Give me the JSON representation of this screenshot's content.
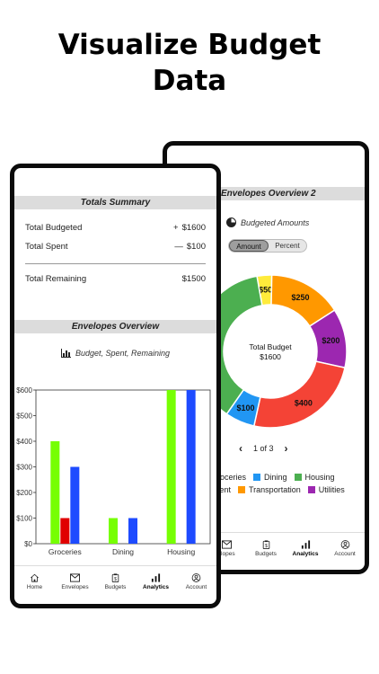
{
  "headline": {
    "line1": "Visualize Budget",
    "line2": "Data"
  },
  "back_phone": {
    "section_title": "Envelopes Overview 2",
    "subtitle": "Budgeted Amounts",
    "toggle": [
      "Amount",
      "Percent"
    ],
    "donut_center": {
      "line1": "Total Budget",
      "line2": "$1600"
    },
    "pager": {
      "prev": "‹",
      "label": "1 of 3",
      "next": "›"
    },
    "legend_row1": [
      {
        "label": "Groceries",
        "display": "roceries",
        "color": "#4caf50"
      },
      {
        "label": "Dining",
        "display": "Dining",
        "color": "#2196f3"
      },
      {
        "label": "Housing",
        "display": "Housing",
        "color": "#4caf50"
      }
    ],
    "legend_row2": [
      {
        "label": "Entertainment",
        "display": "nment",
        "color": "#ff9800"
      },
      {
        "label": "Transportation",
        "display": "Transportation",
        "color": "#ff9800"
      },
      {
        "label": "Utilities",
        "display": "Utilities",
        "color": "#9c27b0"
      }
    ],
    "nav": [
      {
        "label": "Envelopes",
        "display": "elopes",
        "icon": "mail-icon"
      },
      {
        "label": "Budgets",
        "icon": "clipboard-icon"
      },
      {
        "label": "Analytics",
        "icon": "analytics-icon",
        "selected": true
      },
      {
        "label": "Account",
        "icon": "account-icon"
      }
    ]
  },
  "front_phone": {
    "totals_title": "Totals Summary",
    "rows": [
      {
        "label": "Total Budgeted",
        "sign": "+",
        "value": "$1600"
      },
      {
        "label": "Total Spent",
        "sign": "—",
        "value": "$100"
      },
      {
        "label": "Total Remaining",
        "sign": "",
        "value": "$1500"
      }
    ],
    "envelopes_title": "Envelopes Overview",
    "chart_subtitle": "Budget, Spent, Remaining",
    "nav": [
      {
        "label": "Home",
        "icon": "home-icon"
      },
      {
        "label": "Envelopes",
        "icon": "mail-icon"
      },
      {
        "label": "Budgets",
        "icon": "clipboard-icon"
      },
      {
        "label": "Analytics",
        "icon": "analytics-icon",
        "selected": true
      },
      {
        "label": "Account",
        "icon": "account-icon"
      }
    ]
  },
  "chart_data": [
    {
      "type": "bar",
      "categories": [
        "Groceries",
        "Dining",
        "Housing"
      ],
      "series": [
        {
          "values": [
            400,
            100,
            600
          ],
          "color": "#76ff03"
        },
        {
          "values": [
            100,
            0,
            0
          ],
          "color": "#e00000"
        },
        {
          "values": [
            300,
            100,
            600
          ],
          "color": "#1e4bff"
        }
      ],
      "ylim": [
        0,
        600
      ],
      "yticks": [
        "$0",
        "$100",
        "$200",
        "$300",
        "$400",
        "$500",
        "$600"
      ],
      "grid": false
    },
    {
      "type": "pie",
      "title": "Total Budget",
      "subtitle": "$1600",
      "slices": [
        {
          "label": "$50",
          "value": 50,
          "color": "#ffeb3b"
        },
        {
          "label": "$250",
          "value": 250,
          "color": "#ff9800"
        },
        {
          "label": "$200",
          "value": 200,
          "color": "#9c27b0"
        },
        {
          "label": "$400",
          "value": 400,
          "color": "#f44336"
        },
        {
          "label": "$100",
          "value": 100,
          "color": "#2196f3"
        },
        {
          "label": "",
          "value": 600,
          "color": "#4caf50"
        }
      ]
    }
  ]
}
